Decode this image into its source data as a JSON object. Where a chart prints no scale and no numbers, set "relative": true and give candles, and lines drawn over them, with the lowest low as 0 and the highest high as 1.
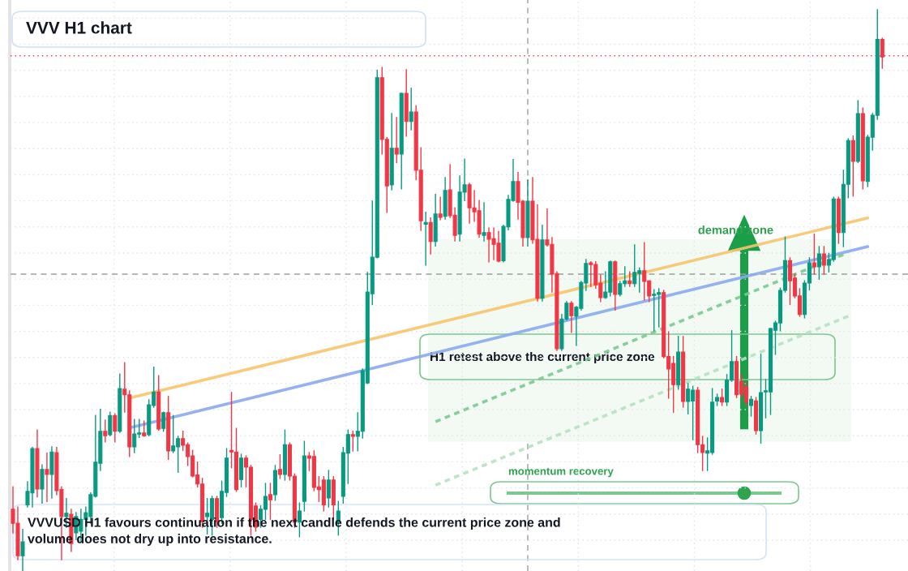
{
  "chart_data": {
    "type": "candlestick",
    "title": "VVV H1 chart",
    "relative": true,
    "tick_labels": false,
    "grid": true,
    "legend": false,
    "categories": [
      null,
      null,
      null,
      null,
      null,
      null,
      null,
      null,
      null,
      null,
      null,
      null,
      null,
      null,
      null,
      null,
      null,
      null,
      null,
      null,
      null,
      null,
      null,
      null,
      null,
      null,
      null,
      null,
      null,
      null,
      null,
      null,
      null,
      null,
      null,
      null,
      null,
      null,
      null,
      null,
      null,
      null,
      null,
      null,
      null,
      null,
      null,
      null,
      null,
      null,
      null,
      null,
      null,
      null,
      null,
      null,
      null,
      null,
      null,
      null,
      null,
      null,
      null,
      null,
      null,
      null,
      null,
      null,
      null,
      null,
      null,
      null,
      null,
      null,
      null,
      null,
      null,
      null,
      null,
      null,
      null,
      null,
      null,
      null,
      null,
      null,
      null,
      null,
      null,
      null,
      null,
      null,
      null,
      null,
      null,
      null,
      null,
      null,
      null,
      null,
      null,
      null,
      null,
      null,
      null,
      null,
      null,
      null,
      null,
      null,
      null,
      null,
      null,
      null,
      null,
      null,
      null,
      null,
      null,
      null,
      null,
      null,
      null,
      null,
      null,
      null,
      null,
      null,
      null,
      null,
      null,
      null,
      null,
      null,
      null,
      null,
      null,
      null,
      null,
      null,
      null,
      null,
      null,
      null,
      null,
      null,
      null,
      null,
      null,
      null,
      null,
      null,
      null,
      null,
      null,
      null,
      null,
      null,
      null,
      null,
      null,
      null,
      null,
      null,
      null,
      null,
      null,
      null,
      null,
      null,
      null,
      null,
      null,
      null,
      null,
      null,
      null,
      null,
      null,
      null
    ],
    "ohlc": [
      [
        0.11,
        0.15,
        0.068,
        0.085
      ],
      [
        0.085,
        0.114,
        0.02,
        0.027
      ],
      [
        0.027,
        0.074,
        0.0,
        0.052
      ],
      [
        0.118,
        0.159,
        0.114,
        0.142
      ],
      [
        0.139,
        0.22,
        0.114,
        0.218
      ],
      [
        0.218,
        0.251,
        0.132,
        0.146
      ],
      [
        0.146,
        0.189,
        0.121,
        0.181
      ],
      [
        0.181,
        0.21,
        0.124,
        0.172
      ],
      [
        0.172,
        0.221,
        0.13,
        0.212
      ],
      [
        0.211,
        0.22,
        0.136,
        0.143
      ],
      [
        0.145,
        0.15,
        0.02,
        0.097
      ],
      [
        0.097,
        0.129,
        0.078,
        0.103
      ],
      [
        0.101,
        0.11,
        0.035,
        0.049
      ],
      [
        0.068,
        0.104,
        0.056,
        0.097
      ],
      [
        0.071,
        0.11,
        0.052,
        0.092
      ],
      [
        0.092,
        0.114,
        0.064,
        0.104
      ],
      [
        0.097,
        0.139,
        0.085,
        0.136
      ],
      [
        0.133,
        0.277,
        0.132,
        0.194
      ],
      [
        0.192,
        0.288,
        0.179,
        0.249
      ],
      [
        0.249,
        0.269,
        0.23,
        0.241
      ],
      [
        0.243,
        0.283,
        0.241,
        0.277
      ],
      [
        0.277,
        0.28,
        0.23,
        0.249
      ],
      [
        0.249,
        0.351,
        0.247,
        0.325
      ],
      [
        0.324,
        0.371,
        0.283,
        0.314
      ],
      [
        0.314,
        0.321,
        0.204,
        0.221
      ],
      [
        0.221,
        0.27,
        0.211,
        0.244
      ],
      [
        0.244,
        0.27,
        0.238,
        0.246
      ],
      [
        0.246,
        0.267,
        0.24,
        0.241
      ],
      [
        0.243,
        0.305,
        0.241,
        0.296
      ],
      [
        0.295,
        0.363,
        0.292,
        0.319
      ],
      [
        0.319,
        0.348,
        0.251,
        0.253
      ],
      [
        0.254,
        0.283,
        0.249,
        0.282
      ],
      [
        0.282,
        0.311,
        0.199,
        0.214
      ],
      [
        0.214,
        0.277,
        0.211,
        0.223
      ],
      [
        0.221,
        0.24,
        0.176,
        0.236
      ],
      [
        0.236,
        0.249,
        0.215,
        0.224
      ],
      [
        0.225,
        0.228,
        0.188,
        0.204
      ],
      [
        0.205,
        0.215,
        0.168,
        0.169
      ],
      [
        0.171,
        0.194,
        0.15,
        0.155
      ],
      [
        0.155,
        0.165,
        0.078,
        0.088
      ],
      [
        0.097,
        0.129,
        0.066,
        0.103
      ],
      [
        0.092,
        0.133,
        0.064,
        0.129
      ],
      [
        0.129,
        0.133,
        0.078,
        0.088
      ],
      [
        0.095,
        0.16,
        0.085,
        0.142
      ],
      [
        0.14,
        0.218,
        0.133,
        0.201
      ],
      [
        0.215,
        0.318,
        0.184,
        0.212
      ],
      [
        0.212,
        0.254,
        0.142,
        0.145
      ],
      [
        0.163,
        0.208,
        0.15,
        0.201
      ],
      [
        0.201,
        0.205,
        0.15,
        0.185
      ],
      [
        0.185,
        0.188,
        0.064,
        0.092
      ],
      [
        0.116,
        0.121,
        0.071,
        0.078
      ],
      [
        0.092,
        0.116,
        0.078,
        0.11
      ],
      [
        0.11,
        0.156,
        0.092,
        0.133
      ],
      [
        0.136,
        0.156,
        0.092,
        0.127
      ],
      [
        0.136,
        0.188,
        0.126,
        0.179
      ],
      [
        0.181,
        0.207,
        0.165,
        0.172
      ],
      [
        0.172,
        0.251,
        0.162,
        0.225
      ],
      [
        0.225,
        0.228,
        0.162,
        0.169
      ],
      [
        0.169,
        0.173,
        0.078,
        0.087
      ],
      [
        0.087,
        0.121,
        0.061,
        0.107
      ],
      [
        0.124,
        0.231,
        0.107,
        0.205
      ],
      [
        0.205,
        0.211,
        0.179,
        0.201
      ],
      [
        0.204,
        0.214,
        0.143,
        0.149
      ],
      [
        0.15,
        0.168,
        0.124,
        0.145
      ],
      [
        0.162,
        0.168,
        0.107,
        0.118
      ],
      [
        0.13,
        0.179,
        0.114,
        0.162
      ],
      [
        0.162,
        0.168,
        0.092,
        0.118
      ],
      [
        0.087,
        0.124,
        0.064,
        0.107
      ],
      [
        0.133,
        0.22,
        0.121,
        0.211
      ],
      [
        0.21,
        0.251,
        0.156,
        0.243
      ],
      [
        0.243,
        0.249,
        0.214,
        0.24
      ],
      [
        0.24,
        0.282,
        0.214,
        0.249
      ],
      [
        0.249,
        0.36,
        0.237,
        0.357
      ],
      [
        0.335,
        0.532,
        0.334,
        0.497
      ],
      [
        0.494,
        0.659,
        0.475,
        0.559
      ],
      [
        0.559,
        0.892,
        0.558,
        0.879
      ],
      [
        0.879,
        0.897,
        0.743,
        0.769
      ],
      [
        0.769,
        0.772,
        0.639,
        0.686
      ],
      [
        0.688,
        0.815,
        0.679,
        0.753
      ],
      [
        0.753,
        0.808,
        0.728,
        0.743
      ],
      [
        0.743,
        0.851,
        0.681,
        0.851
      ],
      [
        0.851,
        0.893,
        0.775,
        0.801
      ],
      [
        0.801,
        0.86,
        0.786,
        0.818
      ],
      [
        0.818,
        0.829,
        0.697,
        0.714
      ],
      [
        0.714,
        0.754,
        0.607,
        0.624
      ],
      [
        0.618,
        0.639,
        0.545,
        0.621
      ],
      [
        0.621,
        0.629,
        0.565,
        0.587
      ],
      [
        0.587,
        0.671,
        0.579,
        0.636
      ],
      [
        0.636,
        0.666,
        0.626,
        0.63
      ],
      [
        0.632,
        0.701,
        0.627,
        0.678
      ],
      [
        0.679,
        0.724,
        0.63,
        0.633
      ],
      [
        0.634,
        0.647,
        0.588,
        0.598
      ],
      [
        0.6,
        0.704,
        0.588,
        0.675
      ],
      [
        0.675,
        0.734,
        0.66,
        0.688
      ],
      [
        0.688,
        0.691,
        0.62,
        0.647
      ],
      [
        0.647,
        0.678,
        0.623,
        0.64
      ],
      [
        0.642,
        0.66,
        0.595,
        0.6
      ],
      [
        0.598,
        0.656,
        0.588,
        0.603
      ],
      [
        0.603,
        0.611,
        0.551,
        0.591
      ],
      [
        0.592,
        0.611,
        0.555,
        0.582
      ],
      [
        0.584,
        0.605,
        0.551,
        0.552
      ],
      [
        0.553,
        0.616,
        0.551,
        0.614
      ],
      [
        0.613,
        0.669,
        0.608,
        0.662
      ],
      [
        0.66,
        0.733,
        0.659,
        0.694
      ],
      [
        0.694,
        0.71,
        0.627,
        0.657
      ],
      [
        0.659,
        0.66,
        0.579,
        0.594
      ],
      [
        0.594,
        0.697,
        0.579,
        0.659
      ],
      [
        0.659,
        0.701,
        0.584,
        0.59
      ],
      [
        0.591,
        0.652,
        0.481,
        0.486
      ],
      [
        0.486,
        0.616,
        0.481,
        0.59
      ],
      [
        0.59,
        0.645,
        0.579,
        0.581
      ],
      [
        0.582,
        0.594,
        0.497,
        0.529
      ],
      [
        0.53,
        0.533,
        0.393,
        0.396
      ],
      [
        0.396,
        0.457,
        0.393,
        0.449
      ],
      [
        0.449,
        0.48,
        0.447,
        0.477
      ],
      [
        0.477,
        0.48,
        0.425,
        0.455
      ],
      [
        0.454,
        0.471,
        0.402,
        0.47
      ],
      [
        0.468,
        0.516,
        0.465,
        0.514
      ],
      [
        0.513,
        0.555,
        0.5,
        0.548
      ],
      [
        0.549,
        0.551,
        0.507,
        0.546
      ],
      [
        0.546,
        0.551,
        0.504,
        0.51
      ],
      [
        0.513,
        0.527,
        0.48,
        0.487
      ],
      [
        0.487,
        0.533,
        0.486,
        0.497
      ],
      [
        0.497,
        0.552,
        0.49,
        0.551
      ],
      [
        0.551,
        0.552,
        0.465,
        0.493
      ],
      [
        0.493,
        0.516,
        0.49,
        0.512
      ],
      [
        0.512,
        0.542,
        0.507,
        0.517
      ],
      [
        0.517,
        0.533,
        0.507,
        0.512
      ],
      [
        0.512,
        0.581,
        0.507,
        0.532
      ],
      [
        0.53,
        0.54,
        0.497,
        0.535
      ],
      [
        0.535,
        0.585,
        0.483,
        0.516
      ],
      [
        0.517,
        0.517,
        0.48,
        0.49
      ],
      [
        0.491,
        0.501,
        0.428,
        0.493
      ],
      [
        0.493,
        0.503,
        0.435,
        0.496
      ],
      [
        0.496,
        0.5,
        0.38,
        0.382
      ],
      [
        0.382,
        0.426,
        0.308,
        0.36
      ],
      [
        0.37,
        0.382,
        0.283,
        0.332
      ],
      [
        0.332,
        0.418,
        0.324,
        0.39
      ],
      [
        0.39,
        0.418,
        0.292,
        0.302
      ],
      [
        0.302,
        0.334,
        0.28,
        0.324
      ],
      [
        0.303,
        0.329,
        0.234,
        0.322
      ],
      [
        0.322,
        0.327,
        0.211,
        0.225
      ],
      [
        0.225,
        0.24,
        0.179,
        0.211
      ],
      [
        0.21,
        0.237,
        0.179,
        0.214
      ],
      [
        0.211,
        0.325,
        0.208,
        0.301
      ],
      [
        0.303,
        0.315,
        0.295,
        0.309
      ],
      [
        0.309,
        0.324,
        0.295,
        0.301
      ],
      [
        0.301,
        0.35,
        0.295,
        0.34
      ],
      [
        0.34,
        0.428,
        0.338,
        0.373
      ],
      [
        0.373,
        0.382,
        0.309,
        0.314
      ],
      [
        0.338,
        0.35,
        0.309,
        0.315
      ],
      [
        0.328,
        0.335,
        0.295,
        0.301
      ],
      [
        0.295,
        0.311,
        0.276,
        0.306
      ],
      [
        0.303,
        0.309,
        0.244,
        0.25
      ],
      [
        0.25,
        0.386,
        0.228,
        0.318
      ],
      [
        0.319,
        0.341,
        0.273,
        0.321
      ],
      [
        0.319,
        0.432,
        0.279,
        0.432
      ],
      [
        0.429,
        0.445,
        0.386,
        0.442
      ],
      [
        0.442,
        0.504,
        0.428,
        0.5
      ],
      [
        0.5,
        0.595,
        0.497,
        0.553
      ],
      [
        0.553,
        0.558,
        0.475,
        0.517
      ],
      [
        0.522,
        0.529,
        0.487,
        0.49
      ],
      [
        0.49,
        0.503,
        0.454,
        0.457
      ],
      [
        0.457,
        0.517,
        0.451,
        0.513
      ],
      [
        0.513,
        0.558,
        0.501,
        0.549
      ],
      [
        0.549,
        0.6,
        0.529,
        0.542
      ],
      [
        0.542,
        0.578,
        0.52,
        0.565
      ],
      [
        0.565,
        0.578,
        0.529,
        0.545
      ],
      [
        0.545,
        0.566,
        0.533,
        0.555
      ],
      [
        0.555,
        0.666,
        0.552,
        0.663
      ],
      [
        0.663,
        0.666,
        0.584,
        0.603
      ],
      [
        0.603,
        0.714,
        0.578,
        0.689
      ],
      [
        0.689,
        0.77,
        0.665,
        0.767
      ],
      [
        0.767,
        0.775,
        0.668,
        0.73
      ],
      [
        0.73,
        0.838,
        0.728,
        0.815
      ],
      [
        0.815,
        0.825,
        0.681,
        0.695
      ],
      [
        0.694,
        0.776,
        0.685,
        0.773
      ],
      [
        0.773,
        0.815,
        0.75,
        0.812
      ],
      [
        0.812,
        1.0,
        0.805,
        0.947
      ],
      [
        0.947,
        0.949,
        0.896,
        0.916
      ]
    ],
    "colors": [
      "#f23645",
      "#f23645",
      "#089981",
      "#089981",
      "#089981",
      "#f23645",
      "#089981",
      "#f23645",
      "#089981",
      "#f23645",
      "#f23645",
      "#089981",
      "#f23645",
      "#089981",
      "#089981",
      "#089981",
      "#089981",
      "#089981",
      "#089981",
      "#f23645",
      "#089981",
      "#f23645",
      "#089981",
      "#f23645",
      "#f23645",
      "#089981",
      "#089981",
      "#f23645",
      "#089981",
      "#089981",
      "#f23645",
      "#089981",
      "#f23645",
      "#089981",
      "#089981",
      "#f23645",
      "#f23645",
      "#f23645",
      "#f23645",
      "#f23645",
      "#089981",
      "#089981",
      "#f23645",
      "#089981",
      "#089981",
      "#f23645",
      "#f23645",
      "#089981",
      "#f23645",
      "#f23645",
      "#f23645",
      "#089981",
      "#089981",
      "#f23645",
      "#089981",
      "#f23645",
      "#089981",
      "#f23645",
      "#f23645",
      "#089981",
      "#089981",
      "#f23645",
      "#f23645",
      "#f23645",
      "#f23645",
      "#089981",
      "#f23645",
      "#089981",
      "#089981",
      "#089981",
      "#f23645",
      "#089981",
      "#089981",
      "#089981",
      "#089981",
      "#089981",
      "#f23645",
      "#f23645",
      "#089981",
      "#f23645",
      "#089981",
      "#f23645",
      "#089981",
      "#f23645",
      "#f23645",
      "#089981",
      "#f23645",
      "#089981",
      "#f23645",
      "#089981",
      "#f23645",
      "#f23645",
      "#089981",
      "#089981",
      "#f23645",
      "#f23645",
      "#f23645",
      "#089981",
      "#f23645",
      "#f23645",
      "#f23645",
      "#089981",
      "#089981",
      "#089981",
      "#f23645",
      "#f23645",
      "#089981",
      "#f23645",
      "#f23645",
      "#089981",
      "#f23645",
      "#f23645",
      "#f23645",
      "#089981",
      "#089981",
      "#f23645",
      "#089981",
      "#089981",
      "#089981",
      "#f23645",
      "#f23645",
      "#f23645",
      "#089981",
      "#089981",
      "#f23645",
      "#089981",
      "#089981",
      "#f23645",
      "#089981",
      "#089981",
      "#f23645",
      "#f23645",
      "#089981",
      "#089981",
      "#f23645",
      "#f23645",
      "#f23645",
      "#089981",
      "#f23645",
      "#089981",
      "#089981",
      "#f23645",
      "#f23645",
      "#089981",
      "#089981",
      "#089981",
      "#f23645",
      "#089981",
      "#089981",
      "#f23645",
      "#f23645",
      "#f23645",
      "#089981",
      "#f23645",
      "#089981",
      "#089981",
      "#089981",
      "#089981",
      "#089981",
      "#089981",
      "#f23645",
      "#f23645",
      "#f23645",
      "#089981",
      "#089981",
      "#f23645",
      "#089981",
      "#f23645",
      "#089981",
      "#089981",
      "#f23645",
      "#089981",
      "#089981",
      "#f23645",
      "#089981",
      "#f23645",
      "#089981",
      "#089981",
      "#089981",
      "#f23645"
    ],
    "series": [
      {
        "type": "line",
        "color": "#f7c46c",
        "line_style": "solid",
        "values": [
          null,
          null,
          null,
          null,
          null,
          null,
          null,
          null,
          null,
          null,
          null,
          null,
          null,
          null,
          null,
          null,
          null,
          null,
          null,
          null,
          null,
          null,
          null,
          null,
          0.308,
          null,
          null,
          null,
          null,
          null,
          null,
          null,
          null,
          null,
          null,
          null,
          null,
          null,
          null,
          null,
          null,
          null,
          null,
          null,
          null,
          null,
          null,
          null,
          null,
          null,
          null,
          null,
          null,
          null,
          null,
          null,
          null,
          null,
          null,
          null,
          null,
          null,
          null,
          null,
          null,
          null,
          null,
          null,
          null,
          null,
          null,
          null,
          null,
          null,
          null,
          null,
          null,
          null,
          null,
          null,
          null,
          null,
          null,
          null,
          null,
          null,
          null,
          null,
          null,
          null,
          null,
          null,
          null,
          null,
          null,
          null,
          null,
          null,
          null,
          null,
          null,
          null,
          null,
          null,
          null,
          null,
          null,
          null,
          null,
          null,
          null,
          null,
          null,
          null,
          null,
          null,
          null,
          null,
          null,
          null,
          null,
          null,
          null,
          null,
          null,
          null,
          null,
          null,
          null,
          null,
          null,
          null,
          null,
          null,
          null,
          null,
          null,
          null,
          null,
          null,
          null,
          null,
          null,
          null,
          null,
          null,
          null,
          null,
          null,
          null,
          null,
          null,
          null,
          null,
          null,
          null,
          null,
          null,
          null,
          null,
          null,
          null,
          null,
          null,
          null,
          null,
          null,
          null,
          null,
          null,
          null,
          null,
          null,
          null,
          null,
          null,
          0.629,
          null,
          null,
          null
        ]
      },
      {
        "type": "line",
        "color": "#8aa9f0",
        "line_style": "solid",
        "values": [
          null,
          null,
          null,
          null,
          null,
          null,
          null,
          null,
          null,
          null,
          null,
          null,
          null,
          null,
          null,
          null,
          null,
          null,
          null,
          null,
          null,
          null,
          null,
          null,
          0.255,
          null,
          null,
          null,
          null,
          null,
          null,
          null,
          null,
          null,
          null,
          null,
          null,
          null,
          null,
          null,
          null,
          null,
          null,
          null,
          null,
          null,
          null,
          null,
          null,
          null,
          null,
          null,
          null,
          null,
          null,
          null,
          null,
          null,
          null,
          null,
          null,
          null,
          null,
          null,
          null,
          null,
          null,
          null,
          null,
          null,
          null,
          null,
          null,
          null,
          null,
          null,
          null,
          null,
          null,
          null,
          null,
          null,
          null,
          null,
          null,
          null,
          null,
          null,
          null,
          null,
          null,
          null,
          null,
          null,
          null,
          null,
          null,
          null,
          null,
          null,
          null,
          null,
          null,
          null,
          null,
          null,
          null,
          null,
          null,
          null,
          null,
          null,
          null,
          null,
          null,
          null,
          null,
          null,
          null,
          null,
          null,
          null,
          null,
          null,
          null,
          null,
          null,
          null,
          null,
          null,
          null,
          null,
          null,
          null,
          null,
          null,
          null,
          null,
          null,
          null,
          null,
          null,
          null,
          null,
          null,
          null,
          null,
          null,
          null,
          null,
          null,
          null,
          null,
          null,
          null,
          null,
          null,
          null,
          null,
          null,
          null,
          null,
          null,
          null,
          null,
          null,
          null,
          null,
          null,
          null,
          null,
          null,
          null,
          null,
          null,
          null,
          0.578,
          null,
          null,
          null
        ]
      },
      {
        "type": "line",
        "color": "#7cc990",
        "line_style": "dashed",
        "values": [
          null,
          null,
          null,
          null,
          null,
          null,
          null,
          null,
          null,
          null,
          null,
          null,
          null,
          null,
          null,
          null,
          null,
          null,
          null,
          null,
          null,
          null,
          null,
          null,
          null,
          null,
          null,
          null,
          null,
          null,
          null,
          null,
          null,
          null,
          null,
          null,
          null,
          null,
          null,
          null,
          null,
          null,
          null,
          null,
          null,
          null,
          null,
          null,
          null,
          null,
          null,
          null,
          null,
          null,
          null,
          null,
          null,
          null,
          null,
          null,
          null,
          null,
          null,
          null,
          null,
          null,
          null,
          null,
          null,
          null,
          null,
          null,
          null,
          null,
          null,
          null,
          null,
          null,
          null,
          null,
          null,
          null,
          null,
          null,
          null,
          null,
          null,
          0.266,
          null,
          null,
          null,
          null,
          null,
          null,
          null,
          null,
          null,
          null,
          null,
          null,
          null,
          null,
          null,
          null,
          null,
          null,
          null,
          null,
          null,
          null,
          null,
          null,
          null,
          null,
          null,
          null,
          null,
          null,
          null,
          null,
          null,
          null,
          null,
          null,
          null,
          null,
          null,
          null,
          null,
          null,
          null,
          null,
          null,
          null,
          null,
          null,
          null,
          null,
          null,
          null,
          null,
          null,
          null,
          null,
          null,
          null,
          null,
          null,
          null,
          null,
          null,
          null,
          null,
          null,
          null,
          null,
          null,
          null,
          null,
          null,
          null,
          null,
          null,
          null,
          null,
          null,
          null,
          null,
          null,
          null,
          null,
          0.564,
          null,
          null,
          null,
          null,
          null,
          null,
          null,
          null
        ]
      },
      {
        "type": "line",
        "color": "#b5e2c1",
        "line_style": "dashed",
        "values": [
          null,
          null,
          null,
          null,
          null,
          null,
          null,
          null,
          null,
          null,
          null,
          null,
          null,
          null,
          null,
          null,
          null,
          null,
          null,
          null,
          null,
          null,
          null,
          null,
          null,
          null,
          null,
          null,
          null,
          null,
          null,
          null,
          null,
          null,
          null,
          null,
          null,
          null,
          null,
          null,
          null,
          null,
          null,
          null,
          null,
          null,
          null,
          null,
          null,
          null,
          null,
          null,
          null,
          null,
          null,
          null,
          null,
          null,
          null,
          null,
          null,
          null,
          null,
          null,
          null,
          null,
          null,
          null,
          null,
          null,
          null,
          null,
          null,
          null,
          null,
          null,
          null,
          null,
          null,
          null,
          null,
          null,
          null,
          null,
          null,
          null,
          null,
          0.153,
          null,
          null,
          null,
          null,
          null,
          null,
          null,
          null,
          null,
          null,
          null,
          null,
          null,
          null,
          null,
          null,
          null,
          null,
          null,
          null,
          null,
          null,
          null,
          null,
          null,
          null,
          null,
          null,
          null,
          null,
          null,
          null,
          null,
          null,
          null,
          null,
          null,
          null,
          null,
          null,
          null,
          null,
          null,
          null,
          null,
          null,
          null,
          null,
          null,
          null,
          null,
          null,
          null,
          null,
          null,
          null,
          null,
          null,
          null,
          null,
          null,
          null,
          null,
          null,
          null,
          null,
          null,
          null,
          null,
          null,
          null,
          null,
          null,
          null,
          null,
          null,
          null,
          null,
          null,
          null,
          null,
          null,
          null,
          null,
          0.454,
          null,
          null,
          null,
          null,
          null,
          null,
          null
        ]
      }
    ],
    "ref_lines": [
      {
        "axis": "y",
        "value": 0.529,
        "color": "#9e9e9e",
        "line_style": "dashed"
      },
      {
        "axis": "y",
        "value": 0.918,
        "color": "#f23645",
        "line_style": "dotted"
      }
    ],
    "bands": [
      {
        "axis": "y",
        "from": 0.23,
        "to": 0.591,
        "label": "demand zone",
        "color": "#f2faf3"
      }
    ],
    "annotations": [
      "H1 retest above the current price zone",
      "momentum recovery",
      "VVVUSD H1 favours continuation if the next candle defends the current price zone and volume does not dry up into resistance."
    ]
  }
}
